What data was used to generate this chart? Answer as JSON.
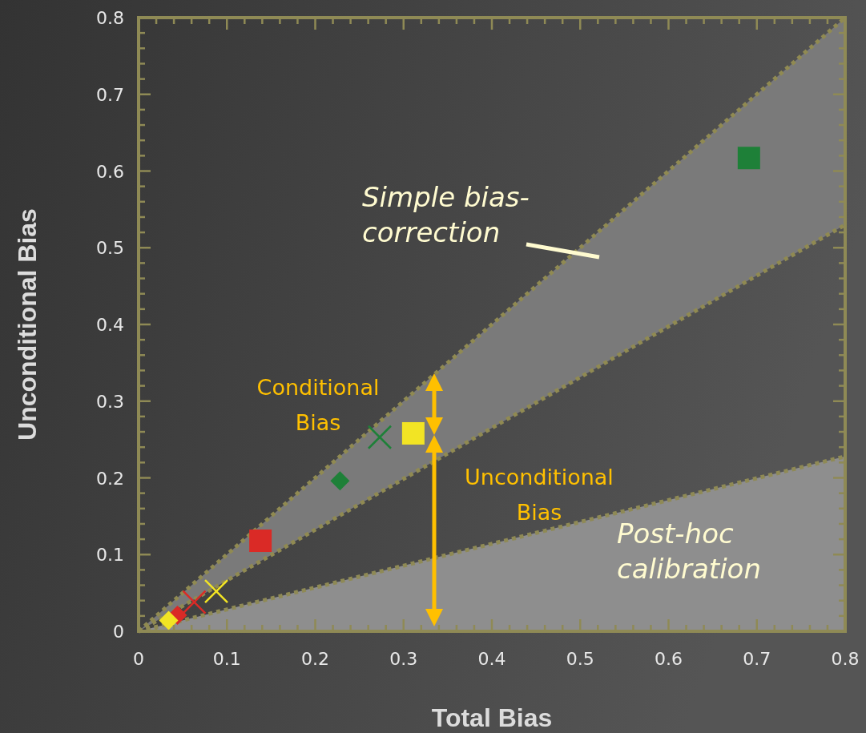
{
  "chart_data": {
    "type": "scatter",
    "xlabel": "Total Bias",
    "ylabel": "Unconditional Bias",
    "xlim": [
      0,
      0.8
    ],
    "ylim": [
      0,
      0.8
    ],
    "xticks": [
      0,
      {
        "value": 0.02,
        "label": null
      },
      {
        "value": 0.04,
        "label": null
      },
      {
        "value": 0.06,
        "label": null
      },
      {
        "value": 0.08,
        "label": null
      },
      0.1,
      {
        "value": 0.12,
        "label": null
      },
      {
        "value": 0.14,
        "label": null
      },
      {
        "value": 0.16,
        "label": null
      },
      {
        "value": 0.18,
        "label": null
      },
      0.2,
      {
        "value": 0.22,
        "label": null
      },
      {
        "value": 0.24,
        "label": null
      },
      {
        "value": 0.26,
        "label": null
      },
      {
        "value": 0.28,
        "label": null
      },
      0.3,
      {
        "value": 0.32,
        "label": null
      },
      {
        "value": 0.34,
        "label": null
      },
      {
        "value": 0.36,
        "label": null
      },
      {
        "value": 0.38,
        "label": null
      },
      0.4,
      {
        "value": 0.42,
        "label": null
      },
      {
        "value": 0.44,
        "label": null
      },
      {
        "value": 0.46,
        "label": null
      },
      {
        "value": 0.48,
        "label": null
      },
      0.5,
      {
        "value": 0.52,
        "label": null
      },
      {
        "value": 0.54,
        "label": null
      },
      {
        "value": 0.56,
        "label": null
      },
      {
        "value": 0.58,
        "label": null
      },
      0.6,
      {
        "value": 0.62,
        "label": null
      },
      {
        "value": 0.64,
        "label": null
      },
      {
        "value": 0.66,
        "label": null
      },
      {
        "value": 0.68,
        "label": null
      },
      0.7,
      {
        "value": 0.72,
        "label": null
      },
      {
        "value": 0.74,
        "label": null
      },
      {
        "value": 0.76,
        "label": null
      },
      {
        "value": 0.78,
        "label": null
      },
      0.8
    ],
    "yticks": [
      0,
      {
        "value": 0.02,
        "label": null
      },
      {
        "value": 0.04,
        "label": null
      },
      {
        "value": 0.06,
        "label": null
      },
      {
        "value": 0.08,
        "label": null
      },
      0.1,
      {
        "value": 0.12,
        "label": null
      },
      {
        "value": 0.14,
        "label": null
      },
      {
        "value": 0.16,
        "label": null
      },
      {
        "value": 0.18,
        "label": null
      },
      0.2,
      {
        "value": 0.22,
        "label": null
      },
      {
        "value": 0.24,
        "label": null
      },
      {
        "value": 0.26,
        "label": null
      },
      {
        "value": 0.28,
        "label": null
      },
      0.3,
      {
        "value": 0.32,
        "label": null
      },
      {
        "value": 0.34,
        "label": null
      },
      {
        "value": 0.36,
        "label": null
      },
      {
        "value": 0.38,
        "label": null
      },
      0.4,
      {
        "value": 0.42,
        "label": null
      },
      {
        "value": 0.44,
        "label": null
      },
      {
        "value": 0.46,
        "label": null
      },
      {
        "value": 0.48,
        "label": null
      },
      0.5,
      {
        "value": 0.52,
        "label": null
      },
      {
        "value": 0.54,
        "label": null
      },
      {
        "value": 0.56,
        "label": null
      },
      {
        "value": 0.58,
        "label": null
      },
      0.6,
      {
        "value": 0.62,
        "label": null
      },
      {
        "value": 0.64,
        "label": null
      },
      {
        "value": 0.66,
        "label": null
      },
      {
        "value": 0.68,
        "label": null
      },
      0.7,
      {
        "value": 0.72,
        "label": null
      },
      {
        "value": 0.74,
        "label": null
      },
      {
        "value": 0.76,
        "label": null
      },
      {
        "value": 0.78,
        "label": null
      },
      0.8
    ],
    "grid": false,
    "series": [
      {
        "type": "area",
        "x": [
          0,
          0.8
        ],
        "values": [
          0,
          0.228
        ],
        "color": "#8e8e8e",
        "line_style": "dotted"
      },
      {
        "type": "line",
        "x": [
          0,
          0.8
        ],
        "values": [
          0,
          0.8
        ],
        "lower": [
          0,
          0.53
        ],
        "upper": [
          0,
          0.8
        ],
        "color": "#908a52",
        "line_style": "dotted"
      },
      {
        "type": "line",
        "x": [
          0,
          0.8
        ],
        "values": [
          0,
          0.53
        ],
        "color": "#908a52",
        "line_style": "dotted"
      },
      {
        "marker": "square",
        "x": [
          0.691,
          0.311,
          0.138
        ],
        "values": [
          0.617,
          0.258,
          0.118
        ],
        "colors": [
          "#1e8038",
          "#f2e424",
          "#da2a26"
        ]
      },
      {
        "marker": "cross",
        "x": [
          0.273,
          0.088,
          0.063
        ],
        "values": [
          0.253,
          0.052,
          0.038
        ],
        "colors": [
          "#1e8038",
          "#f2e424",
          "#da2a26"
        ]
      },
      {
        "marker": "diamond",
        "x": [
          0.228,
          0.044,
          0.034
        ],
        "values": [
          0.196,
          0.021,
          0.014
        ],
        "colors": [
          "#1e8038",
          "#da2a26",
          "#f2e424"
        ]
      }
    ],
    "annotations": [
      "Conditional\nBias",
      "Unconditional\nBias",
      "Simple bias-\ncorrection",
      "Post-hoc\ncalibration"
    ]
  }
}
